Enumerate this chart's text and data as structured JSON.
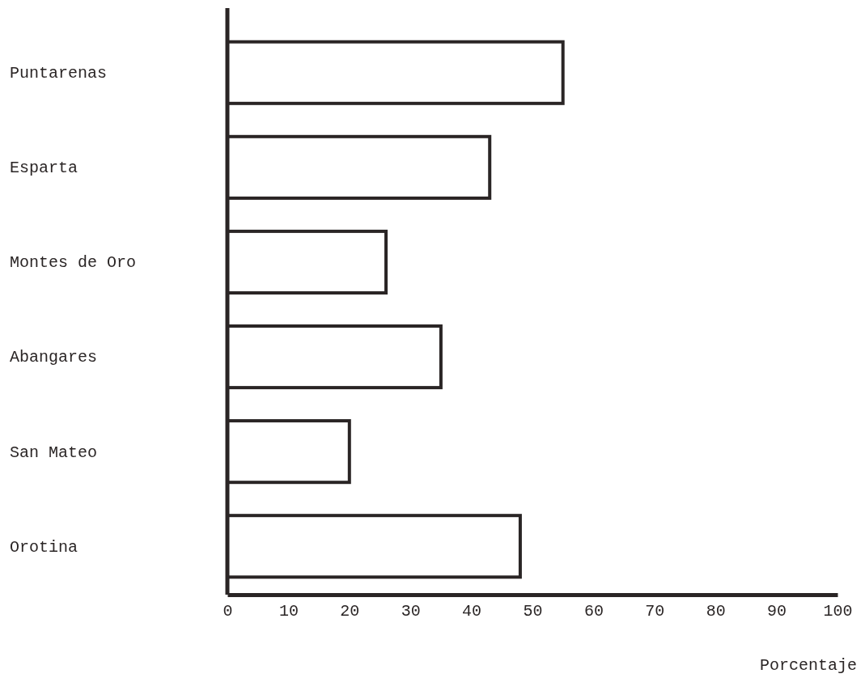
{
  "chart_data": {
    "type": "bar",
    "orientation": "horizontal",
    "xlabel": "Porcentaje",
    "categories": [
      "Puntarenas",
      "Esparta",
      "Montes de Oro",
      "Abangares",
      "San Mateo",
      "Orotina"
    ],
    "values": [
      55,
      43,
      26,
      35,
      20,
      48
    ],
    "color": "#ffffff",
    "xlim": [
      0,
      100
    ],
    "xticks": [
      0,
      10,
      20,
      30,
      40,
      50,
      60,
      70,
      80,
      90,
      100
    ],
    "grid": false
  }
}
